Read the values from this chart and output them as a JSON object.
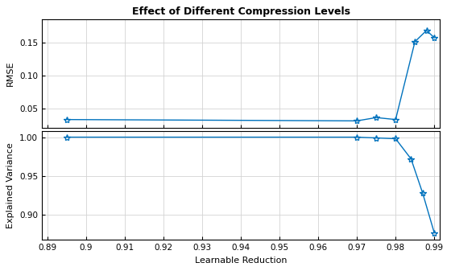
{
  "title": "Effect of Different Compression Levels",
  "xlabel": "Learnable Reduction",
  "ylabel1": "RMSE",
  "ylabel2": "Explained Variance",
  "xlim": [
    0.8885,
    0.9915
  ],
  "xticks": [
    0.89,
    0.9,
    0.91,
    0.92,
    0.93,
    0.94,
    0.95,
    0.96,
    0.97,
    0.98,
    0.99
  ],
  "xticklabels": [
    "0.89",
    "0.9",
    "0.91",
    "0.92",
    "0.93",
    "0.94",
    "0.95",
    "0.96",
    "0.97",
    "0.98",
    "0.99"
  ],
  "line_color": "#0072BD",
  "marker": "*",
  "markersize": 6,
  "linewidth": 1.0,
  "rmse_x": [
    0.895,
    0.97,
    0.975,
    0.98,
    0.985,
    0.988,
    0.99
  ],
  "rmse_y": [
    0.033,
    0.031,
    0.036,
    0.033,
    0.151,
    0.168,
    0.157
  ],
  "ev_x": [
    0.895,
    0.97,
    0.975,
    0.98,
    0.984,
    0.987,
    0.99
  ],
  "ev_y": [
    1.0,
    1.0,
    0.999,
    0.998,
    0.972,
    0.928,
    0.877
  ],
  "rmse_ylim": [
    0.02,
    0.185
  ],
  "rmse_yticks": [
    0.05,
    0.1,
    0.15
  ],
  "ev_ylim": [
    0.868,
    1.008
  ],
  "ev_yticks": [
    0.9,
    0.95,
    1.0
  ],
  "background_color": "#ffffff",
  "grid_color": "#d3d3d3"
}
